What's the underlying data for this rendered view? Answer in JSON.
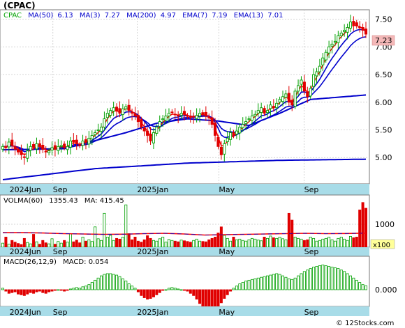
{
  "header": {
    "title": "(CPAC)"
  },
  "colors": {
    "up": "#00a000",
    "down": "#e00000",
    "ma_blue": "#0000cc",
    "ema_red": "#ff0000",
    "frame": "#777777",
    "grid": "#c8c8c8",
    "axis_band": "#a8dce8",
    "vol_avg": "#ff0000"
  },
  "chart_data": [
    {
      "type": "candlestick",
      "panel": "price",
      "legend": {
        "ticker": "CPAC",
        "ma50_label": "MA(50)",
        "ma50": "6.13",
        "ma3_label": "MA(3)",
        "ma3": "7.27",
        "ma200_label": "MA(200)",
        "ma200": "4.97",
        "ema7_label": "EMA(7)",
        "ema7": "7.19",
        "ema13_label": "EMA(13)",
        "ema13": "7.01"
      },
      "last_price": "7.23",
      "y_ticks": [
        "7.50",
        "7.00",
        "6.50",
        "6.00",
        "5.50",
        "5.00"
      ],
      "ylim": [
        4.55,
        7.62
      ],
      "x_labels": [
        "2024Jun",
        "Sep",
        "2025Jan",
        "May",
        "Sep"
      ],
      "closes": [
        5.2,
        5.18,
        5.28,
        5.22,
        5.15,
        5.1,
        5.05,
        5.0,
        5.12,
        5.2,
        5.18,
        5.25,
        5.2,
        5.15,
        5.1,
        5.12,
        5.18,
        5.15,
        5.2,
        5.22,
        5.18,
        5.2,
        5.3,
        5.28,
        5.25,
        5.22,
        5.3,
        5.28,
        5.35,
        5.4,
        5.45,
        5.5,
        5.55,
        5.7,
        5.8,
        5.85,
        5.9,
        5.85,
        5.8,
        5.88,
        5.92,
        5.85,
        5.8,
        5.75,
        5.65,
        5.55,
        5.48,
        5.4,
        5.3,
        5.45,
        5.55,
        5.65,
        5.7,
        5.75,
        5.8,
        5.82,
        5.78,
        5.75,
        5.8,
        5.78,
        5.75,
        5.72,
        5.74,
        5.76,
        5.8,
        5.78,
        5.75,
        5.72,
        5.6,
        5.4,
        5.2,
        5.05,
        5.25,
        5.35,
        5.45,
        5.4,
        5.48,
        5.55,
        5.6,
        5.65,
        5.7,
        5.75,
        5.78,
        5.85,
        5.9,
        5.8,
        5.85,
        5.95,
        5.9,
        5.98,
        6.05,
        6.1,
        6.15,
        6.0,
        5.95,
        6.2,
        6.3,
        6.4,
        6.2,
        6.1,
        6.25,
        6.5,
        6.55,
        6.65,
        6.8,
        6.9,
        7.0,
        7.05,
        7.1,
        7.2,
        7.25,
        7.3,
        7.35,
        7.45,
        7.4,
        7.38,
        7.35,
        7.3,
        7.23
      ],
      "sma50_key": [
        [
          0,
          5.14
        ],
        [
          20,
          5.16
        ],
        [
          40,
          5.45
        ],
        [
          50,
          5.62
        ],
        [
          60,
          5.7
        ],
        [
          70,
          5.66
        ],
        [
          80,
          5.58
        ],
        [
          90,
          5.8
        ],
        [
          100,
          6.05
        ],
        [
          118,
          6.13
        ]
      ],
      "sma200_key": [
        [
          0,
          4.6
        ],
        [
          30,
          4.8
        ],
        [
          60,
          4.9
        ],
        [
          90,
          4.95
        ],
        [
          118,
          4.97
        ]
      ],
      "ema7": 7.19,
      "ema13": 7.01
    },
    {
      "type": "bar",
      "panel": "volume",
      "legend": {
        "label": "VOLMA(60)",
        "value": "1355.43",
        "ma_label": "MA:",
        "ma_value": "415.45"
      },
      "y_tick": "1000",
      "unit_badge": "x100",
      "ylim": [
        0,
        1500
      ],
      "values": [
        120,
        300,
        90,
        200,
        150,
        110,
        80,
        260,
        140,
        100,
        380,
        160,
        90,
        200,
        130,
        100,
        250,
        90,
        170,
        120,
        200,
        150,
        400,
        160,
        210,
        130,
        300,
        180,
        220,
        170,
        600,
        250,
        200,
        1000,
        300,
        350,
        200,
        260,
        240,
        300,
        1250,
        400,
        220,
        300,
        180,
        150,
        220,
        340,
        260,
        200,
        180,
        250,
        300,
        150,
        230,
        200,
        180,
        160,
        210,
        190,
        170,
        150,
        200,
        240,
        180,
        170,
        160,
        220,
        260,
        300,
        420,
        600,
        350,
        260,
        180,
        300,
        220,
        240,
        200,
        180,
        220,
        260,
        240,
        210,
        190,
        300,
        260,
        330,
        280,
        260,
        300,
        250,
        220,
        1000,
        800,
        300,
        260,
        240,
        200,
        220,
        300,
        260,
        180,
        200,
        240,
        260,
        300,
        220,
        180,
        260,
        300,
        240,
        200,
        320,
        280,
        300,
        1100,
        1320,
        1150
      ],
      "ma_line": [
        430,
        430,
        420,
        400,
        390,
        380,
        385,
        400,
        410,
        390,
        360,
        370,
        380,
        390,
        400,
        410,
        400,
        405,
        415
      ],
      "ma_overlay": 415.45
    },
    {
      "type": "bar",
      "panel": "macd",
      "legend": {
        "label": "MACD(26,12,9)",
        "macd_label": "MACD:",
        "macd_value": "0.054"
      },
      "y_tick": "0.000",
      "ylim": [
        -0.36,
        0.42
      ],
      "values": [
        0.02,
        -0.02,
        -0.05,
        -0.04,
        -0.03,
        -0.06,
        -0.07,
        -0.08,
        -0.06,
        -0.04,
        -0.05,
        -0.03,
        -0.02,
        -0.04,
        -0.05,
        -0.03,
        -0.02,
        -0.01,
        0.0,
        -0.01,
        -0.02,
        -0.01,
        0.01,
        0.02,
        0.03,
        0.02,
        0.04,
        0.05,
        0.07,
        0.1,
        0.13,
        0.16,
        0.19,
        0.21,
        0.22,
        0.22,
        0.21,
        0.2,
        0.18,
        0.15,
        0.12,
        0.08,
        0.05,
        0.02,
        -0.03,
        -0.08,
        -0.11,
        -0.13,
        -0.12,
        -0.1,
        -0.07,
        -0.04,
        -0.01,
        0.0,
        0.02,
        0.03,
        0.02,
        0.01,
        0.0,
        -0.01,
        -0.02,
        -0.05,
        -0.08,
        -0.13,
        -0.19,
        -0.23,
        -0.26,
        -0.29,
        -0.3,
        -0.28,
        -0.24,
        -0.18,
        -0.12,
        -0.07,
        -0.02,
        0.02,
        0.05,
        0.08,
        0.1,
        0.12,
        0.13,
        0.14,
        0.15,
        0.16,
        0.17,
        0.18,
        0.19,
        0.2,
        0.21,
        0.22,
        0.21,
        0.19,
        0.17,
        0.15,
        0.14,
        0.16,
        0.19,
        0.22,
        0.25,
        0.27,
        0.29,
        0.31,
        0.32,
        0.33,
        0.34,
        0.33,
        0.32,
        0.31,
        0.3,
        0.29,
        0.27,
        0.25,
        0.22,
        0.19,
        0.16,
        0.13,
        0.1,
        0.07,
        0.054
      ]
    }
  ],
  "footer": {
    "watermark": "© 12Stocks.com"
  }
}
